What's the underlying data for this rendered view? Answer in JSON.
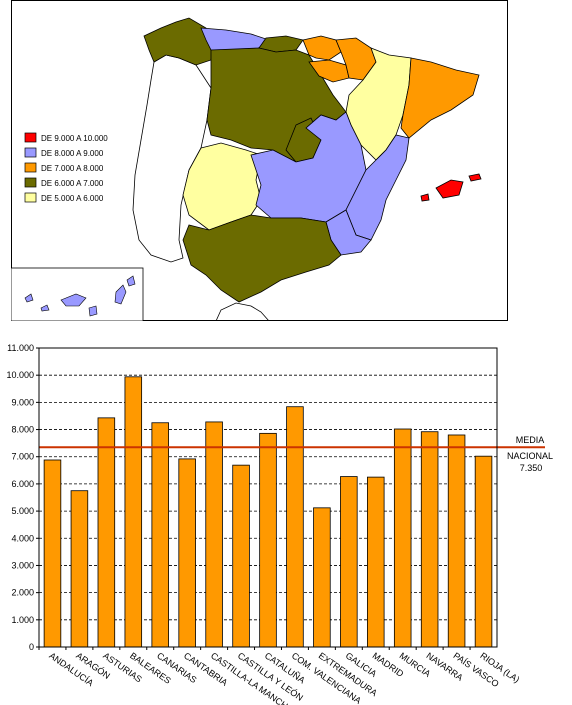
{
  "map": {
    "legend": [
      {
        "label": "DE 9.000 A 10.000",
        "color": "#ff0000"
      },
      {
        "label": "DE 8.000 A 9.000",
        "color": "#9999ff"
      },
      {
        "label": "DE 7.000 A 8.000",
        "color": "#ff9900"
      },
      {
        "label": "DE 6.000 A 7.000",
        "color": "#6b6b00"
      },
      {
        "label": "DE 5.000 A 6.000",
        "color": "#ffffa0"
      }
    ]
  },
  "chart_data": {
    "type": "bar",
    "categories": [
      "ANDALUCÍA",
      "ARAGÓN",
      "ASTURIAS",
      "BALEARES",
      "CANARIAS",
      "CANTABRIA",
      "CASTILLA-LA MANCHA",
      "CASTILLA Y LEÓN",
      "CATALUÑA",
      "COM. VALENCIANA",
      "EXTREMADURA",
      "GALICIA",
      "MADRID",
      "MURCIA",
      "NAVARRA",
      "PAÍS VASCO",
      "RIOJA (LA)"
    ],
    "values": [
      6880,
      5750,
      8430,
      9940,
      8250,
      6920,
      8280,
      6690,
      7860,
      8840,
      5120,
      6270,
      6250,
      8020,
      7920,
      7800,
      7020
    ],
    "ylim": [
      0,
      11000
    ],
    "yticks": [
      "0",
      "1.000",
      "2.000",
      "3.000",
      "4.000",
      "5.000",
      "6.000",
      "7.000",
      "8.000",
      "9.000",
      "10.000",
      "11.000"
    ],
    "grid": true,
    "bar_color": "#ff9900",
    "reference_line": {
      "value": 7350,
      "label_1": "MEDIA",
      "label_2": "NACIONAL",
      "label_3": "7.350",
      "color": "#cc3300"
    }
  }
}
